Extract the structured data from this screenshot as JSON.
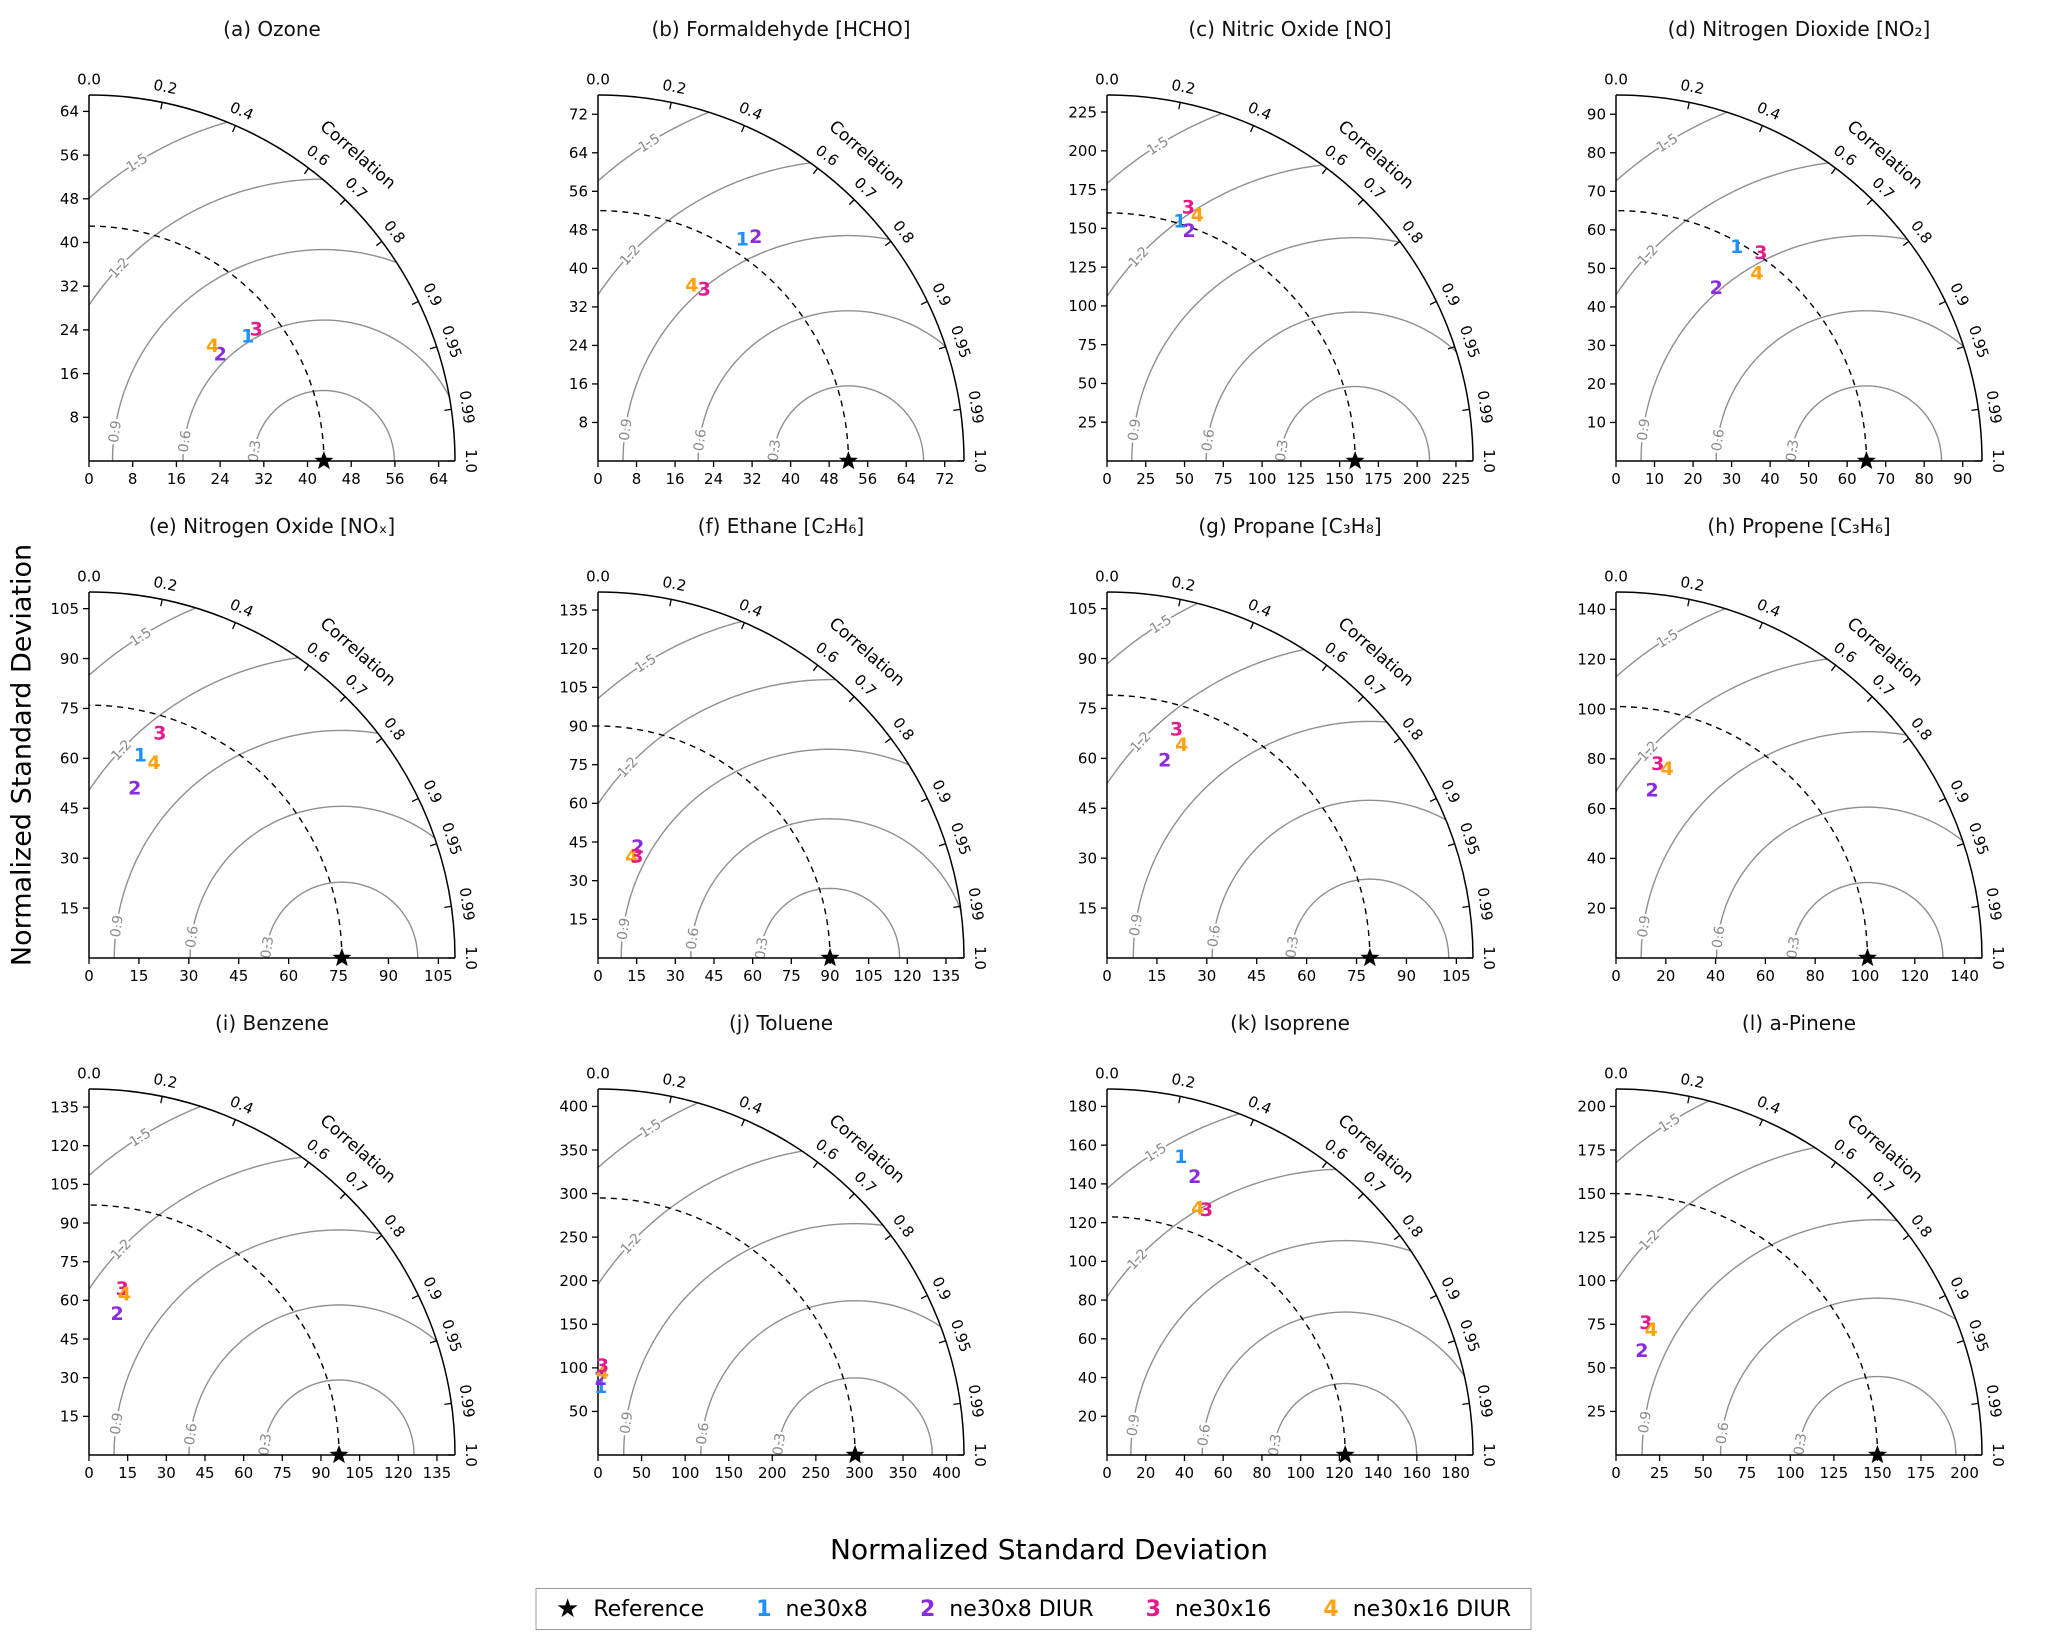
{
  "figure": {
    "xlabel": "Normalized Standard Deviation",
    "ylabel": "Normalized Standard Deviation"
  },
  "legend": {
    "items": [
      {
        "symbol": "★",
        "label": "Reference",
        "color": "#000000",
        "type": "star"
      },
      {
        "symbol": "1",
        "label": "ne30x8",
        "color": "#1e90ff",
        "type": "number"
      },
      {
        "symbol": "2",
        "label": "ne30x8 DIUR",
        "color": "#8a2be2",
        "type": "number"
      },
      {
        "symbol": "3",
        "label": "ne30x16",
        "color": "#e6198c",
        "type": "number"
      },
      {
        "symbol": "4",
        "label": "ne30x16 DIUR",
        "color": "#ffa20d",
        "type": "number"
      }
    ]
  },
  "chart_data": {
    "type": "scatter",
    "subtype": "taylor-diagram-grid",
    "correlation_label": "Correlation",
    "correlation_ticks": [
      {
        "v": 0.0,
        "label": "0.0"
      },
      {
        "v": 0.2,
        "label": "0.2"
      },
      {
        "v": 0.4,
        "label": "0.4"
      },
      {
        "v": 0.6,
        "label": "0.6"
      },
      {
        "v": 0.7,
        "label": "0.7"
      },
      {
        "v": 0.8,
        "label": "0.8"
      },
      {
        "v": 0.9,
        "label": "0.9"
      },
      {
        "v": 0.95,
        "label": "0.95"
      },
      {
        "v": 0.99,
        "label": "0.99"
      },
      {
        "v": 1.0,
        "label": "1.0"
      }
    ],
    "rms_contour_levels": [
      0.3,
      0.6,
      0.9,
      1.2,
      1.5
    ],
    "style": {
      "axis_color": "#000000",
      "contour_color": "#8f8f8f",
      "contour_label_color": "#8a8a8a"
    },
    "panels": [
      {
        "id": "a",
        "title": "(a) Ozone",
        "tick_step": 8,
        "tick_max": 64,
        "axis_max": 67,
        "ref_std": 43,
        "points": [
          {
            "m": "1",
            "std": 37,
            "corr": 0.785
          },
          {
            "m": "2",
            "std": 31,
            "corr": 0.775
          },
          {
            "m": "3",
            "std": 39,
            "corr": 0.785
          },
          {
            "m": "4",
            "std": 31,
            "corr": 0.73
          }
        ]
      },
      {
        "id": "b",
        "title": "(b) Formaldehyde [HCHO]",
        "tick_step": 8,
        "tick_max": 72,
        "axis_max": 76,
        "ref_std": 52,
        "points": [
          {
            "m": "1",
            "std": 55,
            "corr": 0.545
          },
          {
            "m": "2",
            "std": 57,
            "corr": 0.575
          },
          {
            "m": "3",
            "std": 42,
            "corr": 0.525
          },
          {
            "m": "4",
            "std": 41.5,
            "corr": 0.47
          }
        ]
      },
      {
        "id": "c",
        "title": "(c) Nitric Oxide [NO]",
        "tick_step": 25,
        "tick_max": 225,
        "axis_max": 236,
        "ref_std": 160,
        "points": [
          {
            "m": "1",
            "std": 162,
            "corr": 0.29
          },
          {
            "m": "2",
            "std": 158,
            "corr": 0.335
          },
          {
            "m": "3",
            "std": 172,
            "corr": 0.305
          },
          {
            "m": "4",
            "std": 169,
            "corr": 0.345
          }
        ]
      },
      {
        "id": "d",
        "title": "(d) Nitrogen Dioxide [NO₂]",
        "tick_step": 10,
        "tick_max": 90,
        "axis_max": 95,
        "ref_std": 65,
        "points": [
          {
            "m": "1",
            "std": 64,
            "corr": 0.49
          },
          {
            "m": "2",
            "std": 52,
            "corr": 0.5
          },
          {
            "m": "3",
            "std": 66,
            "corr": 0.57
          },
          {
            "m": "4",
            "std": 61,
            "corr": 0.6
          }
        ]
      },
      {
        "id": "e",
        "title": "(e) Nitrogen Oxide [NOₓ]",
        "tick_step": 15,
        "tick_max": 105,
        "axis_max": 110,
        "ref_std": 76,
        "points": [
          {
            "m": "1",
            "std": 63,
            "corr": 0.245
          },
          {
            "m": "2",
            "std": 53,
            "corr": 0.26
          },
          {
            "m": "3",
            "std": 71,
            "corr": 0.3
          },
          {
            "m": "4",
            "std": 62,
            "corr": 0.315
          }
        ]
      },
      {
        "id": "f",
        "title": "(f) Ethane [C₂H₆]",
        "tick_step": 15,
        "tick_max": 135,
        "axis_max": 142,
        "ref_std": 90,
        "points": [
          {
            "m": "2",
            "std": 46,
            "corr": 0.335
          },
          {
            "m": "4",
            "std": 41.5,
            "corr": 0.315
          },
          {
            "m": "3",
            "std": 42.5,
            "corr": 0.355
          }
        ]
      },
      {
        "id": "g",
        "title": "(g) Propane [C₃H₈]",
        "tick_step": 15,
        "tick_max": 105,
        "axis_max": 110,
        "ref_std": 79,
        "points": [
          {
            "m": "2",
            "std": 62,
            "corr": 0.28
          },
          {
            "m": "3",
            "std": 72,
            "corr": 0.29
          },
          {
            "m": "4",
            "std": 68,
            "corr": 0.33
          }
        ]
      },
      {
        "id": "h",
        "title": "(h) Propene [C₃H₆]",
        "tick_step": 20,
        "tick_max": 140,
        "axis_max": 147,
        "ref_std": 101,
        "points": [
          {
            "m": "2",
            "std": 69,
            "corr": 0.21
          },
          {
            "m": "3",
            "std": 80,
            "corr": 0.21
          },
          {
            "m": "4",
            "std": 79,
            "corr": 0.26
          }
        ]
      },
      {
        "id": "i",
        "title": "(i) Benzene",
        "tick_step": 15,
        "tick_max": 135,
        "axis_max": 142,
        "ref_std": 97,
        "points": [
          {
            "m": "2",
            "std": 56,
            "corr": 0.195
          },
          {
            "m": "3",
            "std": 66,
            "corr": 0.195
          },
          {
            "m": "4",
            "std": 64,
            "corr": 0.215
          }
        ]
      },
      {
        "id": "j",
        "title": "(j) Toluene",
        "tick_step": 50,
        "tick_max": 400,
        "axis_max": 420,
        "ref_std": 295,
        "points": [
          {
            "m": "1",
            "std": 79,
            "corr": 0.04
          },
          {
            "m": "2",
            "std": 88,
            "corr": 0.035
          },
          {
            "m": "4",
            "std": 95,
            "corr": 0.055
          },
          {
            "m": "3",
            "std": 103,
            "corr": 0.05
          }
        ]
      },
      {
        "id": "k",
        "title": "(k) Isoprene",
        "tick_step": 20,
        "tick_max": 180,
        "axis_max": 189,
        "ref_std": 123,
        "points": [
          {
            "m": "1",
            "std": 159,
            "corr": 0.24
          },
          {
            "m": "2",
            "std": 151,
            "corr": 0.3
          },
          {
            "m": "4",
            "std": 136,
            "corr": 0.345
          },
          {
            "m": "3",
            "std": 137,
            "corr": 0.375
          }
        ]
      },
      {
        "id": "l",
        "title": "(l) a-Pinene",
        "tick_step": 25,
        "tick_max": 200,
        "axis_max": 210,
        "ref_std": 150,
        "points": [
          {
            "m": "2",
            "std": 62,
            "corr": 0.24
          },
          {
            "m": "3",
            "std": 78,
            "corr": 0.22
          },
          {
            "m": "4",
            "std": 75,
            "corr": 0.27
          }
        ]
      }
    ]
  }
}
